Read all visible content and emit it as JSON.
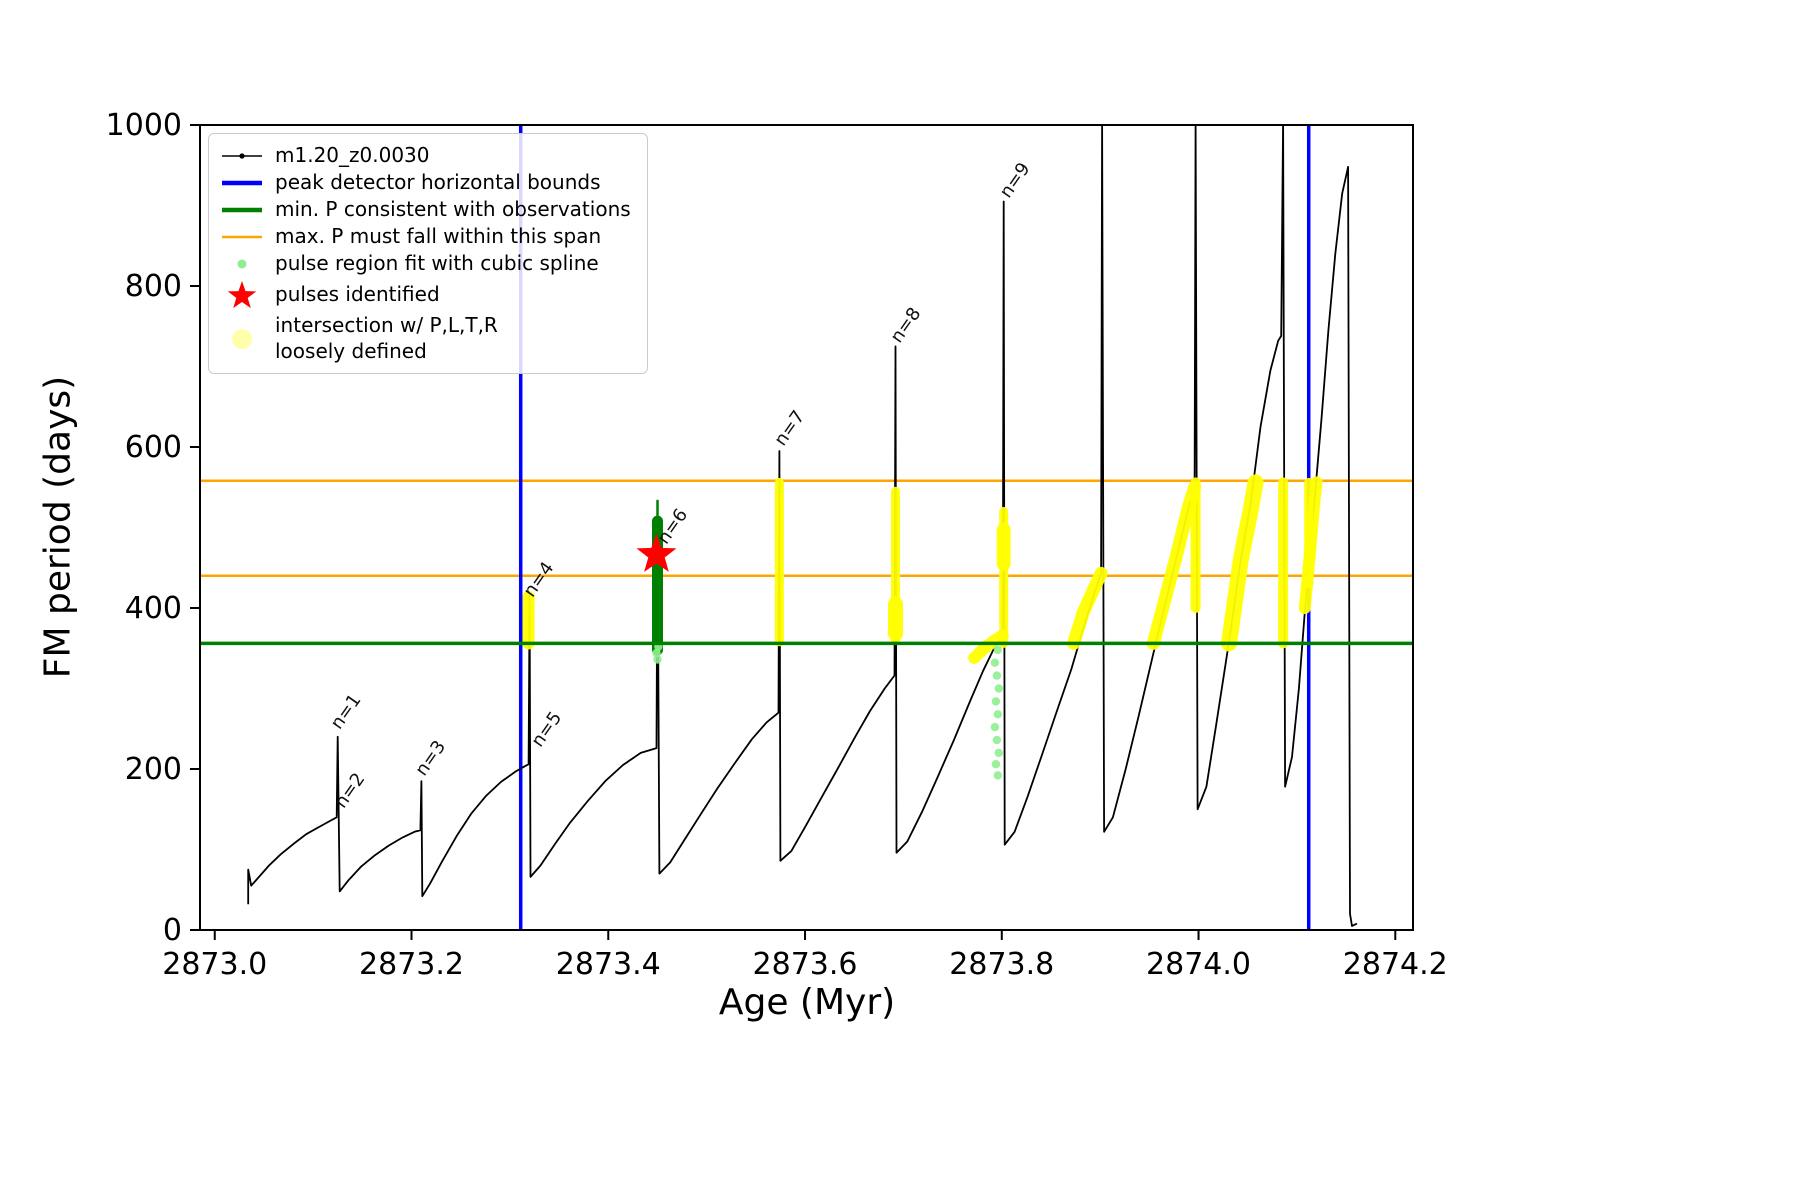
{
  "figure": {
    "xlabel": "Age (Myr)",
    "ylabel": "FM period (days)"
  },
  "legend": {
    "items": [
      {
        "label": "m1.20_z0.0030",
        "marker": "line-dot",
        "color": "#000000"
      },
      {
        "label": "peak detector horizontal bounds",
        "marker": "thick-line",
        "color": "#0000ff"
      },
      {
        "label": "min. P consistent with observations",
        "marker": "thick-line",
        "color": "#008000"
      },
      {
        "label": "max. P must fall within this span",
        "marker": "line",
        "color": "#ffa500"
      },
      {
        "label": "pulse region fit with cubic spline",
        "marker": "dot-small",
        "color": "#90ee90"
      },
      {
        "label": "pulses identified",
        "marker": "star",
        "color": "#ff0000"
      },
      {
        "label": "intersection w/ P,L,T,R\nloosely defined",
        "marker": "dot-large",
        "color": "#ffff66"
      }
    ]
  },
  "chart_data": {
    "type": "line",
    "title": "",
    "xlabel": "Age (Myr)",
    "ylabel": "FM period (days)",
    "xlim": [
      2872.985,
      2874.218
    ],
    "ylim": [
      0,
      1000
    ],
    "grid": false,
    "legend_position": "upper left",
    "x_ticks": [
      {
        "v": 2873.0,
        "label": "2873.0"
      },
      {
        "v": 2873.2,
        "label": "2873.2"
      },
      {
        "v": 2873.4,
        "label": "2873.4"
      },
      {
        "v": 2873.6,
        "label": "2873.6"
      },
      {
        "v": 2873.8,
        "label": "2873.8"
      },
      {
        "v": 2874.0,
        "label": "2874.0"
      },
      {
        "v": 2874.2,
        "label": "2874.2"
      }
    ],
    "y_ticks": [
      {
        "v": 0,
        "label": "0"
      },
      {
        "v": 200,
        "label": "200"
      },
      {
        "v": 400,
        "label": "400"
      },
      {
        "v": 600,
        "label": "600"
      },
      {
        "v": 800,
        "label": "800"
      },
      {
        "v": 1000,
        "label": "1000"
      }
    ],
    "series": [
      {
        "name": "m1.20_z0.0030",
        "color": "#000000",
        "width": 1.8,
        "points": [
          [
            2873.034,
            32
          ],
          [
            2873.034,
            75
          ],
          [
            2873.037,
            55
          ],
          [
            2873.045,
            66
          ],
          [
            2873.055,
            80
          ],
          [
            2873.067,
            94
          ],
          [
            2873.08,
            107
          ],
          [
            2873.093,
            119
          ],
          [
            2873.106,
            128
          ],
          [
            2873.118,
            136
          ],
          [
            2873.124,
            140
          ],
          [
            2873.125,
            240
          ],
          [
            2873.127,
            48
          ],
          [
            2873.136,
            62
          ],
          [
            2873.149,
            79
          ],
          [
            2873.163,
            93
          ],
          [
            2873.177,
            105
          ],
          [
            2873.191,
            115
          ],
          [
            2873.203,
            122
          ],
          [
            2873.209,
            124
          ],
          [
            2873.21,
            185
          ],
          [
            2873.211,
            42
          ],
          [
            2873.219,
            58
          ],
          [
            2873.231,
            85
          ],
          [
            2873.246,
            117
          ],
          [
            2873.261,
            145
          ],
          [
            2873.276,
            167
          ],
          [
            2873.291,
            184
          ],
          [
            2873.306,
            197
          ],
          [
            2873.316,
            204
          ],
          [
            2873.319,
            206
          ],
          [
            2873.32,
            415
          ],
          [
            2873.321,
            66
          ],
          [
            2873.331,
            80
          ],
          [
            2873.346,
            107
          ],
          [
            2873.361,
            133
          ],
          [
            2873.379,
            160
          ],
          [
            2873.397,
            185
          ],
          [
            2873.415,
            205
          ],
          [
            2873.433,
            220
          ],
          [
            2873.449,
            226
          ],
          [
            2873.45,
            510
          ],
          [
            2873.452,
            70
          ],
          [
            2873.463,
            84
          ],
          [
            2873.478,
            113
          ],
          [
            2873.493,
            142
          ],
          [
            2873.511,
            176
          ],
          [
            2873.529,
            208
          ],
          [
            2873.546,
            237
          ],
          [
            2873.561,
            258
          ],
          [
            2873.571,
            268
          ],
          [
            2873.573,
            270
          ],
          [
            2873.574,
            595
          ],
          [
            2873.575,
            86
          ],
          [
            2873.586,
            98
          ],
          [
            2873.601,
            130
          ],
          [
            2873.616,
            163
          ],
          [
            2873.633,
            200
          ],
          [
            2873.651,
            240
          ],
          [
            2873.666,
            272
          ],
          [
            2873.681,
            300
          ],
          [
            2873.689,
            313
          ],
          [
            2873.691,
            316
          ],
          [
            2873.692,
            725
          ],
          [
            2873.693,
            96
          ],
          [
            2873.704,
            110
          ],
          [
            2873.719,
            147
          ],
          [
            2873.734,
            188
          ],
          [
            2873.751,
            235
          ],
          [
            2873.768,
            285
          ],
          [
            2873.781,
            322
          ],
          [
            2873.793,
            352
          ],
          [
            2873.801,
            366
          ],
          [
            2873.802,
            905
          ],
          [
            2873.803,
            106
          ],
          [
            2873.813,
            122
          ],
          [
            2873.826,
            165
          ],
          [
            2873.841,
            218
          ],
          [
            2873.856,
            272
          ],
          [
            2873.871,
            325
          ],
          [
            2873.883,
            375
          ],
          [
            2873.894,
            418
          ],
          [
            2873.901,
            443
          ],
          [
            2873.902,
            1005
          ],
          [
            2873.904,
            122
          ],
          [
            2873.913,
            140
          ],
          [
            2873.926,
            200
          ],
          [
            2873.939,
            265
          ],
          [
            2873.953,
            338
          ],
          [
            2873.967,
            410
          ],
          [
            2873.979,
            470
          ],
          [
            2873.989,
            520
          ],
          [
            2873.996,
            550
          ],
          [
            2873.997,
            1005
          ],
          [
            2873.999,
            150
          ],
          [
            2874.008,
            178
          ],
          [
            2874.018,
            255
          ],
          [
            2874.03,
            350
          ],
          [
            2874.043,
            460
          ],
          [
            2874.053,
            530
          ],
          [
            2874.063,
            625
          ],
          [
            2874.073,
            695
          ],
          [
            2874.081,
            732
          ],
          [
            2874.084,
            738
          ],
          [
            2874.086,
            1005
          ],
          [
            2874.088,
            178
          ],
          [
            2874.095,
            215
          ],
          [
            2874.102,
            300
          ],
          [
            2874.108,
            395
          ],
          [
            2874.113,
            465
          ],
          [
            2874.118,
            535
          ],
          [
            2874.125,
            635
          ],
          [
            2874.132,
            745
          ],
          [
            2874.139,
            840
          ],
          [
            2874.146,
            915
          ],
          [
            2874.152,
            948
          ],
          [
            2874.154,
            20
          ],
          [
            2874.156,
            5
          ],
          [
            2874.161,
            8
          ]
        ]
      }
    ],
    "hlines": [
      {
        "y": 558,
        "color": "#ffa500",
        "width": 2.5,
        "name": "max-p-upper-bound-line"
      },
      {
        "y": 440,
        "color": "#ffa500",
        "width": 2.5,
        "name": "max-p-lower-bound-line"
      }
    ],
    "min_p_line": {
      "y": 356,
      "color": "#008000",
      "width": 3.5,
      "name": "min-p-line"
    },
    "vlines": [
      {
        "x": 2873.311,
        "color": "#0000ff",
        "width": 3.5,
        "name": "peak-detector-left-bound"
      },
      {
        "x": 2874.112,
        "color": "#0000ff",
        "width": 3.5,
        "name": "peak-detector-right-bound"
      }
    ],
    "overlays": {
      "yellow_color": "#ffff00",
      "pulse_region_color": "#008000",
      "spline_dot_color": "#90ee90",
      "yellow_segments": [
        {
          "w": 12,
          "pts": [
            [
              2873.319,
              356
            ],
            [
              2873.319,
              414
            ]
          ]
        },
        {
          "w": 9,
          "pts": [
            [
              2873.574,
              358
            ],
            [
              2873.574,
              556
            ]
          ]
        },
        {
          "w": 9,
          "pts": [
            [
              2873.692,
              360
            ],
            [
              2873.692,
              545
            ]
          ]
        },
        {
          "w": 15,
          "pts": [
            [
              2873.692,
              368
            ],
            [
              2873.692,
              405
            ]
          ]
        },
        {
          "w": 9,
          "pts": [
            [
              2873.802,
              356
            ],
            [
              2873.802,
              520
            ]
          ]
        },
        {
          "w": 14,
          "pts": [
            [
              2873.802,
              455
            ],
            [
              2873.802,
              497
            ]
          ]
        },
        {
          "w": 12,
          "pts": [
            [
              2873.772,
              338
            ],
            [
              2873.782,
              350
            ],
            [
              2873.793,
              360
            ],
            [
              2873.801,
              366
            ]
          ]
        },
        {
          "w": 13,
          "pts": [
            [
              2873.873,
              356
            ],
            [
              2873.883,
              395
            ],
            [
              2873.894,
              425
            ],
            [
              2873.901,
              443
            ]
          ]
        },
        {
          "w": 13,
          "pts": [
            [
              2873.954,
              356
            ],
            [
              2873.967,
              416
            ],
            [
              2873.979,
              472
            ],
            [
              2873.989,
              522
            ],
            [
              2873.996,
              550
            ]
          ]
        },
        {
          "w": 10,
          "pts": [
            [
              2873.997,
              400
            ],
            [
              2873.997,
              556
            ]
          ]
        },
        {
          "w": 16,
          "pts": [
            [
              2874.031,
              356
            ],
            [
              2874.043,
              460
            ],
            [
              2874.053,
              522
            ],
            [
              2874.058,
              556
            ]
          ]
        },
        {
          "w": 10,
          "pts": [
            [
              2874.086,
              356
            ],
            [
              2874.086,
              556
            ]
          ]
        },
        {
          "w": 12,
          "pts": [
            [
              2874.108,
              400
            ],
            [
              2874.113,
              465
            ],
            [
              2874.118,
              535
            ],
            [
              2874.12,
              556
            ]
          ]
        },
        {
          "w": 9,
          "pts": [
            [
              2874.112,
              430
            ],
            [
              2874.112,
              556
            ]
          ]
        }
      ],
      "pulse_region_segments": [
        {
          "w": 11,
          "pts": [
            [
              2873.45,
              348
            ],
            [
              2873.45,
              508
            ]
          ]
        },
        {
          "w": 2.5,
          "pts": [
            [
              2873.45,
              508
            ],
            [
              2873.45,
              533
            ]
          ]
        }
      ],
      "spline_dots": [
        [
          2873.45,
          336
        ],
        [
          2873.449,
          344
        ],
        [
          2873.451,
          352
        ],
        [
          2873.796,
          192
        ],
        [
          2873.794,
          206
        ],
        [
          2873.797,
          220
        ],
        [
          2873.795,
          236
        ],
        [
          2873.793,
          252
        ],
        [
          2873.796,
          268
        ],
        [
          2873.794,
          284
        ],
        [
          2873.797,
          300
        ],
        [
          2873.795,
          316
        ],
        [
          2873.793,
          332
        ],
        [
          2873.796,
          348
        ]
      ],
      "star": {
        "x": 2873.449,
        "y": 466,
        "color": "#ff0000"
      }
    },
    "pulse_labels": [
      {
        "text": "n=1",
        "x": 2873.127,
        "y": 248
      },
      {
        "text": "n=2",
        "x": 2873.131,
        "y": 150
      },
      {
        "text": "n=3",
        "x": 2873.213,
        "y": 190
      },
      {
        "text": "n=4",
        "x": 2873.323,
        "y": 412
      },
      {
        "text": "n=5",
        "x": 2873.331,
        "y": 226
      },
      {
        "text": "n=6",
        "x": 2873.459,
        "y": 478
      },
      {
        "text": "n=7",
        "x": 2873.578,
        "y": 600
      },
      {
        "text": "n=8",
        "x": 2873.696,
        "y": 728
      },
      {
        "text": "n=9",
        "x": 2873.807,
        "y": 908
      }
    ]
  }
}
